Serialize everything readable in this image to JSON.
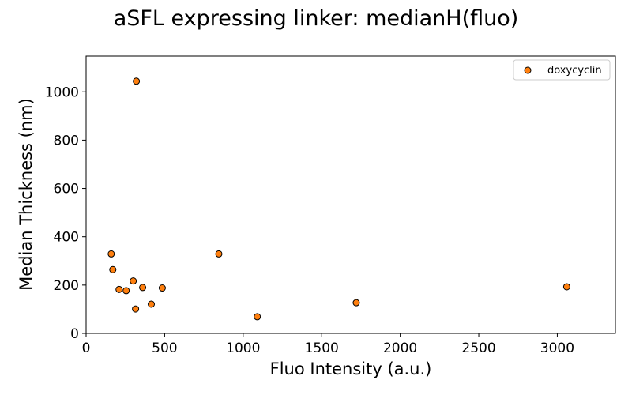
{
  "chart_data": {
    "type": "scatter",
    "title": "aSFL expressing linker: medianH(fluo)",
    "xlabel": "Fluo Intensity (a.u.)",
    "ylabel": "Median Thickness (nm)",
    "xlim": [
      0,
      3370
    ],
    "ylim": [
      0,
      1148
    ],
    "xticks": [
      0,
      500,
      1000,
      1500,
      2000,
      2500,
      3000
    ],
    "yticks": [
      0,
      200,
      400,
      600,
      800,
      1000
    ],
    "grid": false,
    "legend_position": "top-right",
    "series": [
      {
        "name": "doxycyclin",
        "color": "#ff7f0e",
        "points": [
          {
            "x": 160,
            "y": 329
          },
          {
            "x": 170,
            "y": 264
          },
          {
            "x": 210,
            "y": 182
          },
          {
            "x": 255,
            "y": 177
          },
          {
            "x": 300,
            "y": 217
          },
          {
            "x": 320,
            "y": 1044
          },
          {
            "x": 315,
            "y": 101
          },
          {
            "x": 360,
            "y": 190
          },
          {
            "x": 415,
            "y": 121
          },
          {
            "x": 485,
            "y": 188
          },
          {
            "x": 845,
            "y": 329
          },
          {
            "x": 1090,
            "y": 69
          },
          {
            "x": 1720,
            "y": 127
          },
          {
            "x": 3060,
            "y": 193
          }
        ]
      }
    ]
  }
}
